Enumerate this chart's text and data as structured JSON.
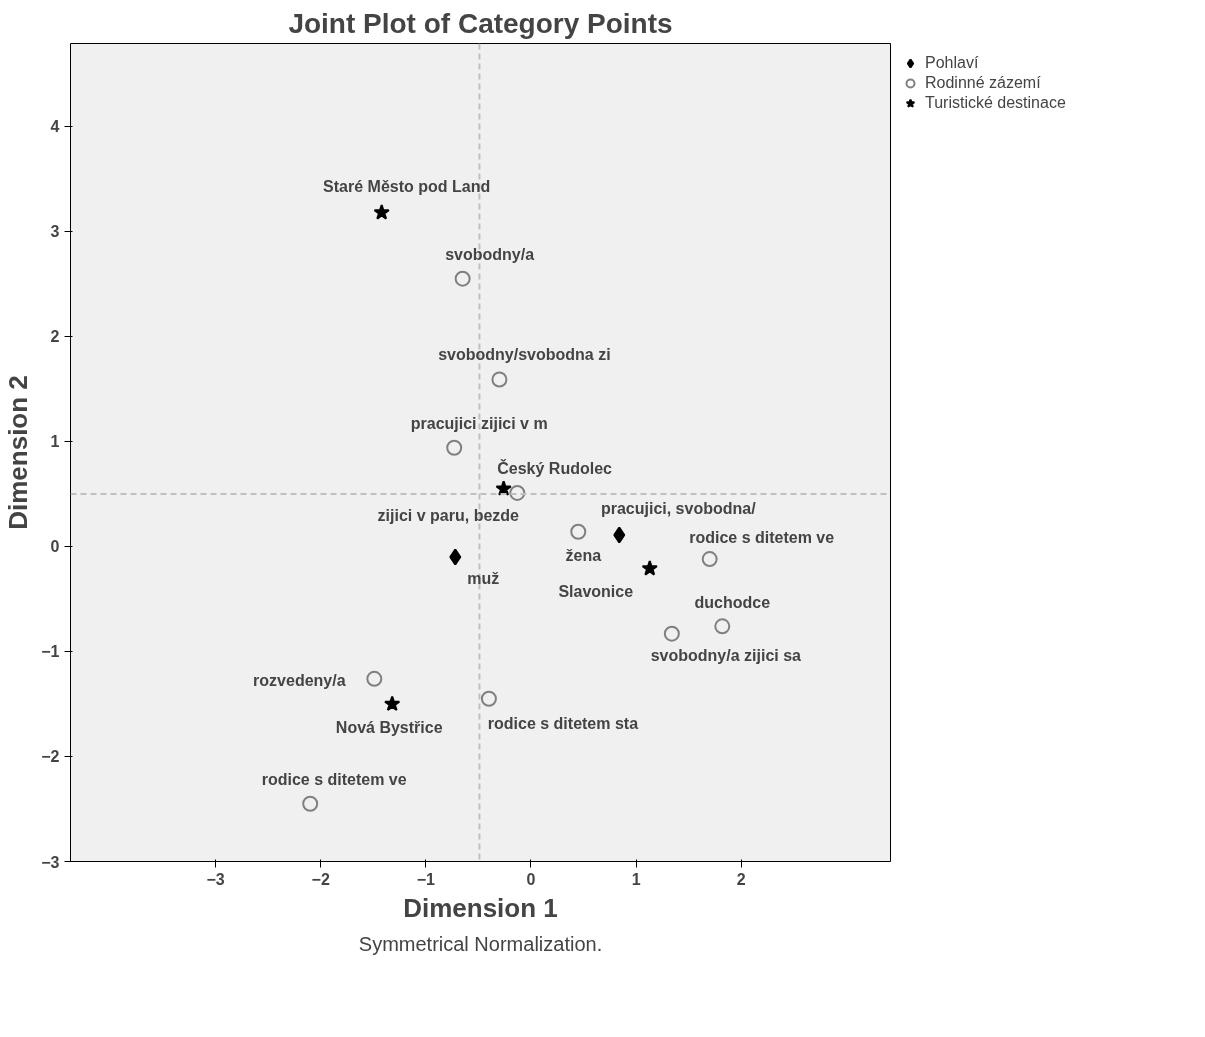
{
  "chart_data": {
    "type": "scatter",
    "title": "Joint Plot of Category Points",
    "xlabel": "Dimension 1",
    "ylabel": "Dimension 2",
    "xlim": [
      -4.38,
      3.42
    ],
    "ylim": [
      -3,
      4.79
    ],
    "xticks": [
      -3,
      -2,
      -1,
      0,
      1,
      2
    ],
    "yticks": [
      -3,
      -2,
      -1,
      0,
      1,
      2,
      3,
      4
    ],
    "grid": false,
    "legend": "top right",
    "series": [
      {
        "name": "Pohlaví",
        "color": "#000000",
        "marker": "diamond",
        "x": [
          -0.72,
          0.84
        ],
        "values": [
          -0.1,
          0.11
        ]
      },
      {
        "name": "Rodinné zázemí",
        "color": "#808080",
        "marker": "circle",
        "x": [
          -0.65,
          -0.3,
          -0.73,
          -0.13,
          0.45,
          1.7,
          1.82,
          1.34,
          -1.49,
          -0.4,
          -2.1
        ],
        "values": [
          2.55,
          1.59,
          0.94,
          0.51,
          0.14,
          -0.12,
          -0.76,
          -0.83,
          -1.26,
          -1.45,
          -2.45
        ]
      },
      {
        "name": "Turistické destinace",
        "color": "#000000",
        "marker": "star",
        "x": [
          -1.42,
          -0.26,
          1.13,
          -1.32
        ],
        "values": [
          3.18,
          0.55,
          -0.21,
          -1.5
        ]
      }
    ],
    "ref_lines": [
      {
        "axis": "x",
        "value": -0.49,
        "color": "#c0c0c0",
        "line_style": "dashed"
      },
      {
        "axis": "y",
        "value": 0.5,
        "color": "#c0c0c0",
        "line_style": "dashed"
      }
    ],
    "annotations": [
      {
        "text": "muž",
        "x": -0.72,
        "y": -0.1
      },
      {
        "text": "žena",
        "x": 0.84,
        "y": 0.11
      },
      {
        "text": "svobodny/a",
        "x": -0.65,
        "y": 2.55
      },
      {
        "text": "svobodny/svobodna zi",
        "x": -0.3,
        "y": 1.59
      },
      {
        "text": "pracujici zijici v m",
        "x": -0.73,
        "y": 0.94
      },
      {
        "text": "zijici v paru, bezde",
        "x": -0.13,
        "y": 0.51
      },
      {
        "text": "pracujici, svobodna/",
        "x": 0.45,
        "y": 0.14
      },
      {
        "text": "rodice s ditetem ve",
        "x": 1.7,
        "y": -0.12
      },
      {
        "text": "duchodce",
        "x": 1.82,
        "y": -0.76
      },
      {
        "text": "svobodny/a zijici sa",
        "x": 1.34,
        "y": -0.83
      },
      {
        "text": "rozvedeny/a",
        "x": -1.49,
        "y": -1.26
      },
      {
        "text": "rodice s ditetem sta",
        "x": -0.4,
        "y": -1.45
      },
      {
        "text": "rodice s ditetem ve",
        "x": -2.1,
        "y": -2.45
      },
      {
        "text": "Staré Město pod Land",
        "x": -1.42,
        "y": 3.18
      },
      {
        "text": "Český Rudolec",
        "x": -0.26,
        "y": 0.55
      },
      {
        "text": "Slavonice",
        "x": 1.13,
        "y": -0.21
      },
      {
        "text": "Nová Bystřice",
        "x": -1.32,
        "y": -1.5
      },
      "Symmetrical Normalization."
    ]
  }
}
